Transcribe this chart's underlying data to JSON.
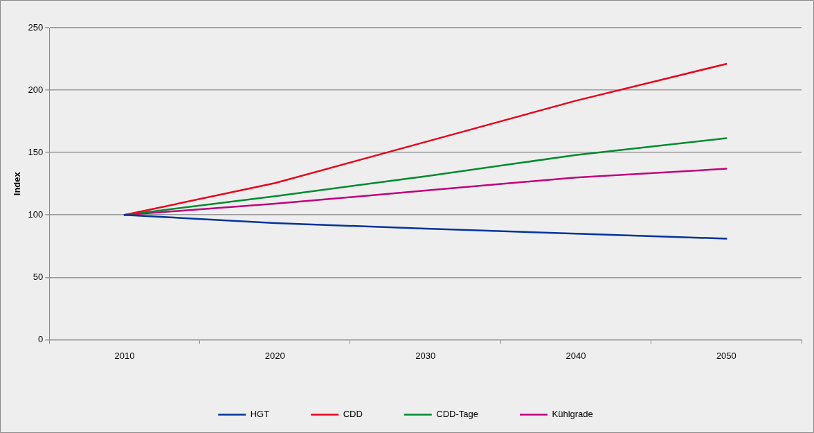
{
  "chart_data": {
    "type": "line",
    "ylabel": "Index",
    "categories": [
      "2010",
      "2020",
      "2030",
      "2040",
      "2050"
    ],
    "series": [
      {
        "name": "HGT",
        "color": "#003399",
        "values": [
          100,
          93.5,
          89,
          85,
          81
        ]
      },
      {
        "name": "CDD",
        "color": "#e8001c",
        "values": [
          100,
          125.5,
          158.5,
          191.5,
          221
        ]
      },
      {
        "name": "CDD-Tage",
        "color": "#008a2e",
        "values": [
          100,
          115,
          131,
          148,
          161.5
        ]
      },
      {
        "name": "Kühlgrade",
        "color": "#c0007a",
        "values": [
          100,
          109,
          119.5,
          130,
          137
        ]
      }
    ],
    "ylim": [
      0,
      250
    ],
    "yticks": [
      0,
      50,
      100,
      150,
      200,
      250
    ],
    "grid": "y",
    "legend": "bottom",
    "marker": "none",
    "line_style": "solid"
  }
}
